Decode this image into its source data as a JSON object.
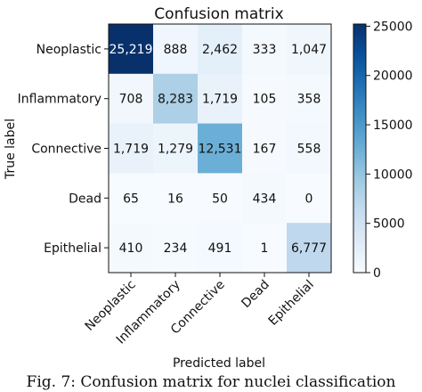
{
  "chart_data": {
    "type": "heatmap",
    "title": "Confusion matrix",
    "xlabel": "Predicted label",
    "ylabel": "True label",
    "x_categories": [
      "Neoplastic",
      "Inflammatory",
      "Connective",
      "Dead",
      "Epithelial"
    ],
    "y_categories": [
      "Neoplastic",
      "Inflammatory",
      "Connective",
      "Dead",
      "Epithelial"
    ],
    "values": [
      [
        25219,
        888,
        2462,
        333,
        1047
      ],
      [
        708,
        8283,
        1719,
        105,
        358
      ],
      [
        1719,
        1279,
        12531,
        167,
        558
      ],
      [
        65,
        16,
        50,
        434,
        0
      ],
      [
        410,
        234,
        491,
        1,
        6777
      ]
    ],
    "cell_labels": [
      [
        "25,219",
        "888",
        "2,462",
        "333",
        "1,047"
      ],
      [
        "708",
        "8,283",
        "1,719",
        "105",
        "358"
      ],
      [
        "1,719",
        "1,279",
        "12,531",
        "167",
        "558"
      ],
      [
        "65",
        "16",
        "50",
        "434",
        "0"
      ],
      [
        "410",
        "234",
        "491",
        "1",
        "6,777"
      ]
    ],
    "colorbar": {
      "colormap": "Blues",
      "min": 0,
      "max": 25219,
      "ticks": [
        0,
        5000,
        10000,
        15000,
        20000,
        25000
      ],
      "tick_labels": [
        "0",
        "5000",
        "10000",
        "15000",
        "20000",
        "25000"
      ]
    }
  },
  "caption": "Fig. 7: Confusion matrix for nuclei classification"
}
